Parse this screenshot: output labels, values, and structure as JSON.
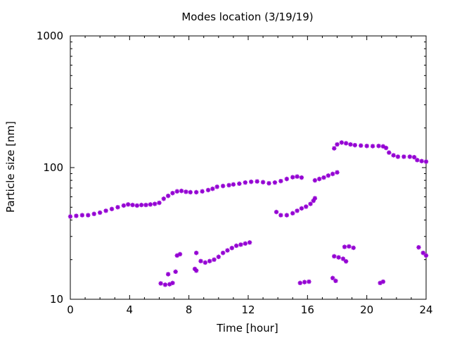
{
  "chart_data": {
    "type": "scatter",
    "title": "Modes location (3/19/19)",
    "xlabel": "Time [hour]",
    "ylabel": "Particle size [nm]",
    "xlim": [
      0,
      24
    ],
    "ylim": [
      10,
      1000
    ],
    "y_scale": "log",
    "x_ticks": [
      0,
      4,
      8,
      12,
      16,
      20,
      24
    ],
    "x_tick_labels": [
      "0",
      "4",
      "8",
      "12",
      "16",
      "20",
      "24"
    ],
    "y_ticks": [
      10,
      100,
      1000
    ],
    "y_tick_labels": [
      "10",
      "100",
      "1000"
    ],
    "grid": false,
    "legend": "none",
    "marker": "star",
    "colors": {
      "series": "#9400d3",
      "axis": "#000000",
      "background": "#ffffff"
    },
    "series": [
      {
        "points": [
          [
            0,
            42.5
          ],
          [
            0.4,
            43
          ],
          [
            0.8,
            43.5
          ],
          [
            1.2,
            43.5
          ],
          [
            1.6,
            44.5
          ],
          [
            2.0,
            45.5
          ],
          [
            2.4,
            47
          ],
          [
            2.8,
            48.5
          ],
          [
            3.2,
            50
          ],
          [
            3.6,
            51.5
          ],
          [
            3.9,
            52.5
          ],
          [
            4.2,
            52
          ],
          [
            4.5,
            51.5
          ],
          [
            4.8,
            52
          ],
          [
            5.1,
            52
          ],
          [
            5.4,
            52.5
          ],
          [
            5.7,
            53
          ],
          [
            6.0,
            54
          ],
          [
            6.3,
            58
          ],
          [
            6.6,
            61
          ],
          [
            6.9,
            64
          ],
          [
            7.2,
            66
          ],
          [
            7.5,
            66.5
          ],
          [
            7.8,
            65.5
          ],
          [
            8.1,
            65
          ],
          [
            8.5,
            65
          ],
          [
            8.9,
            66
          ],
          [
            9.3,
            67.5
          ],
          [
            9.6,
            69
          ],
          [
            9.9,
            71.5
          ],
          [
            10.3,
            72.5
          ],
          [
            10.7,
            73.5
          ],
          [
            11.0,
            74.5
          ],
          [
            11.4,
            75.5
          ],
          [
            11.8,
            77
          ],
          [
            12.2,
            78
          ],
          [
            12.6,
            78.5
          ],
          [
            13.0,
            77.5
          ],
          [
            13.4,
            76
          ],
          [
            13.8,
            77
          ],
          [
            14.2,
            79
          ],
          [
            14.6,
            82
          ],
          [
            15.0,
            84.5
          ],
          [
            15.3,
            85.5
          ],
          [
            15.6,
            84
          ],
          [
            16.5,
            80
          ],
          [
            16.8,
            82
          ],
          [
            17.1,
            84
          ],
          [
            17.4,
            87
          ],
          [
            17.7,
            89.5
          ],
          [
            18.0,
            92
          ]
        ]
      },
      {
        "points": [
          [
            13.9,
            46
          ],
          [
            14.2,
            43.5
          ],
          [
            14.6,
            43.5
          ],
          [
            15.0,
            45
          ],
          [
            15.3,
            47
          ],
          [
            15.6,
            49
          ],
          [
            15.9,
            50.5
          ],
          [
            16.2,
            53
          ],
          [
            16.4,
            56
          ],
          [
            16.5,
            58.5
          ]
        ]
      },
      {
        "points": [
          [
            17.8,
            140
          ],
          [
            18.0,
            150
          ],
          [
            18.3,
            155
          ],
          [
            18.6,
            153
          ],
          [
            18.9,
            150
          ],
          [
            19.2,
            148
          ],
          [
            19.6,
            147
          ],
          [
            20.0,
            146
          ],
          [
            20.4,
            145.5
          ],
          [
            20.8,
            146
          ],
          [
            21.1,
            145
          ],
          [
            21.3,
            141
          ],
          [
            21.5,
            130
          ],
          [
            21.8,
            124
          ],
          [
            22.1,
            121
          ],
          [
            22.5,
            121
          ],
          [
            22.9,
            121
          ],
          [
            23.2,
            120
          ],
          [
            23.4,
            114
          ],
          [
            23.7,
            112
          ],
          [
            24.0,
            111
          ]
        ]
      },
      {
        "points": [
          [
            8.8,
            19.5
          ],
          [
            9.1,
            19
          ],
          [
            9.4,
            19.5
          ],
          [
            9.7,
            20
          ],
          [
            10.0,
            21
          ],
          [
            10.3,
            22.5
          ],
          [
            10.6,
            23.5
          ],
          [
            10.9,
            24.5
          ],
          [
            11.2,
            25.5
          ],
          [
            11.5,
            26
          ],
          [
            11.8,
            26.5
          ],
          [
            12.1,
            27
          ]
        ]
      },
      {
        "points": [
          [
            6.1,
            13.2
          ],
          [
            6.4,
            12.9
          ],
          [
            6.7,
            13
          ],
          [
            6.9,
            13.3
          ],
          [
            6.6,
            15.5
          ],
          [
            7.1,
            16.2
          ],
          [
            7.2,
            21.5
          ],
          [
            7.4,
            22
          ],
          [
            8.4,
            17
          ],
          [
            8.5,
            16.5
          ],
          [
            8.5,
            22.5
          ]
        ]
      },
      {
        "points": [
          [
            15.5,
            13.3
          ],
          [
            15.8,
            13.5
          ],
          [
            16.1,
            13.6
          ],
          [
            17.7,
            14.5
          ],
          [
            17.9,
            13.8
          ],
          [
            17.8,
            21.2
          ],
          [
            18.1,
            20.8
          ],
          [
            18.4,
            20.3
          ],
          [
            18.6,
            19.4
          ],
          [
            18.5,
            25
          ],
          [
            18.8,
            25.2
          ],
          [
            19.1,
            24.6
          ],
          [
            20.9,
            13.3
          ],
          [
            21.1,
            13.6
          ],
          [
            23.5,
            24.8
          ],
          [
            23.8,
            22.5
          ],
          [
            24.0,
            21.5
          ]
        ]
      }
    ]
  }
}
